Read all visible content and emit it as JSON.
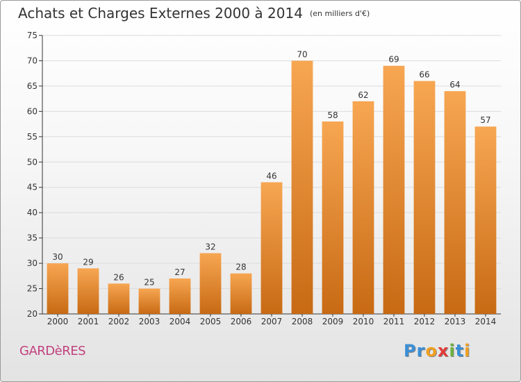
{
  "title": "Achats et Charges Externes 2000 à 2014",
  "title_unit": "(en milliers d'€)",
  "commune": "GARDèRES",
  "brand": {
    "letters": [
      "P",
      "r",
      "o",
      "x",
      "i",
      "t",
      "i"
    ],
    "colors": [
      "#3a8fd6",
      "#3a8fd6",
      "#f0a020",
      "#e23b3b",
      "#6db33f",
      "#3a8fd6",
      "#f0a020"
    ]
  },
  "colors": {
    "bar_light": "#f7a652",
    "bar_dark": "#c86a14",
    "grid": "#dcdcdc",
    "axis": "#333333",
    "text": "#333333",
    "commune": "#c2417e"
  },
  "chart_data": {
    "type": "bar",
    "categories": [
      "2000",
      "2001",
      "2002",
      "2003",
      "2004",
      "2005",
      "2006",
      "2007",
      "2008",
      "2009",
      "2010",
      "2011",
      "2012",
      "2013",
      "2014"
    ],
    "values": [
      30,
      29,
      26,
      25,
      27,
      32,
      28,
      46,
      70,
      58,
      62,
      69,
      66,
      64,
      57
    ],
    "ylim": [
      20,
      75
    ],
    "yticks": [
      20,
      25,
      30,
      35,
      40,
      45,
      50,
      55,
      60,
      65,
      70,
      75
    ],
    "grid": true,
    "xlabel": "",
    "ylabel": ""
  }
}
